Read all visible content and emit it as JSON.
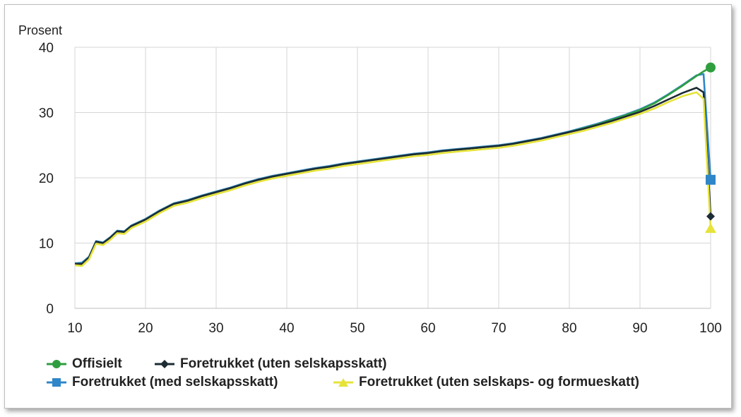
{
  "chart_data": {
    "type": "line",
    "ylabel": "Prosent",
    "xlim": [
      10,
      100
    ],
    "ylim": [
      0,
      40
    ],
    "xticks": [
      10,
      20,
      30,
      40,
      50,
      60,
      70,
      80,
      90,
      100
    ],
    "yticks": [
      0,
      10,
      20,
      30,
      40
    ],
    "grid": true,
    "legend_position": "bottom",
    "series": [
      {
        "name": "Offisielt",
        "color": "#2e9e3e",
        "marker": "circle",
        "x": [
          10,
          11,
          12,
          13,
          14,
          15,
          16,
          17,
          18,
          20,
          22,
          24,
          26,
          28,
          30,
          32,
          34,
          36,
          38,
          40,
          42,
          44,
          46,
          48,
          50,
          52,
          54,
          56,
          58,
          60,
          62,
          64,
          66,
          68,
          70,
          72,
          74,
          76,
          78,
          80,
          82,
          84,
          86,
          88,
          90,
          92,
          94,
          96,
          98,
          99,
          100
        ],
        "y": [
          6.8,
          6.8,
          7.8,
          10.2,
          10.0,
          10.8,
          11.8,
          11.7,
          12.6,
          13.6,
          14.9,
          16.0,
          16.5,
          17.2,
          17.8,
          18.4,
          19.1,
          19.7,
          20.2,
          20.6,
          21.0,
          21.4,
          21.7,
          22.1,
          22.4,
          22.7,
          23.0,
          23.3,
          23.6,
          23.8,
          24.1,
          24.3,
          24.5,
          24.7,
          24.9,
          25.2,
          25.6,
          26.0,
          26.5,
          27.0,
          27.6,
          28.2,
          28.9,
          29.6,
          30.4,
          31.4,
          32.7,
          34.1,
          35.6,
          36.3,
          36.9
        ]
      },
      {
        "name": "Foretrukket (uten selskapsskatt)",
        "color": "#1d2b33",
        "marker": "diamond",
        "x": [
          10,
          11,
          12,
          13,
          14,
          15,
          16,
          17,
          18,
          20,
          22,
          24,
          26,
          28,
          30,
          32,
          34,
          36,
          38,
          40,
          42,
          44,
          46,
          48,
          50,
          52,
          54,
          56,
          58,
          60,
          62,
          64,
          66,
          68,
          70,
          72,
          74,
          76,
          78,
          80,
          82,
          84,
          86,
          88,
          90,
          92,
          94,
          96,
          98,
          99,
          100
        ],
        "y": [
          6.8,
          6.8,
          7.8,
          10.2,
          10.0,
          10.8,
          11.8,
          11.7,
          12.6,
          13.6,
          14.9,
          16.0,
          16.5,
          17.2,
          17.8,
          18.4,
          19.1,
          19.7,
          20.2,
          20.6,
          21.0,
          21.4,
          21.7,
          22.1,
          22.4,
          22.7,
          23.0,
          23.3,
          23.6,
          23.8,
          24.1,
          24.3,
          24.5,
          24.7,
          24.9,
          25.2,
          25.6,
          26.0,
          26.5,
          27.0,
          27.5,
          28.1,
          28.7,
          29.4,
          30.1,
          31.0,
          32.0,
          33.0,
          33.8,
          33.1,
          14.1
        ]
      },
      {
        "name": "Foretrukket (med selskapsskatt)",
        "color": "#2f86c8",
        "marker": "square",
        "x": [
          10,
          11,
          12,
          13,
          14,
          15,
          16,
          17,
          18,
          20,
          22,
          24,
          26,
          28,
          30,
          32,
          34,
          36,
          38,
          40,
          42,
          44,
          46,
          48,
          50,
          52,
          54,
          56,
          58,
          60,
          62,
          64,
          66,
          68,
          70,
          72,
          74,
          76,
          78,
          80,
          82,
          84,
          86,
          88,
          90,
          92,
          94,
          96,
          98,
          99,
          100
        ],
        "y": [
          6.9,
          7.0,
          7.9,
          10.3,
          10.1,
          10.9,
          11.9,
          11.8,
          12.7,
          13.7,
          15.0,
          16.1,
          16.6,
          17.3,
          17.9,
          18.5,
          19.2,
          19.8,
          20.3,
          20.7,
          21.1,
          21.5,
          21.8,
          22.2,
          22.5,
          22.8,
          23.1,
          23.4,
          23.7,
          23.9,
          24.2,
          24.4,
          24.6,
          24.8,
          25.0,
          25.3,
          25.7,
          26.1,
          26.6,
          27.1,
          27.7,
          28.3,
          29.0,
          29.7,
          30.5,
          31.5,
          32.8,
          34.2,
          35.7,
          35.9,
          19.7
        ]
      },
      {
        "name": "Foretrukket (uten selskaps- og formueskatt)",
        "color": "#e6e33a",
        "marker": "triangle",
        "x": [
          10,
          11,
          12,
          13,
          14,
          15,
          16,
          17,
          18,
          20,
          22,
          24,
          26,
          28,
          30,
          32,
          34,
          36,
          38,
          40,
          42,
          44,
          46,
          48,
          50,
          52,
          54,
          56,
          58,
          60,
          62,
          64,
          66,
          68,
          70,
          72,
          74,
          76,
          78,
          80,
          82,
          84,
          86,
          88,
          90,
          92,
          94,
          96,
          98,
          99,
          100
        ],
        "y": [
          6.6,
          6.5,
          7.5,
          9.9,
          9.7,
          10.5,
          11.5,
          11.4,
          12.3,
          13.3,
          14.6,
          15.7,
          16.2,
          16.9,
          17.5,
          18.1,
          18.8,
          19.4,
          19.9,
          20.3,
          20.7,
          21.1,
          21.4,
          21.8,
          22.1,
          22.4,
          22.7,
          23.0,
          23.3,
          23.5,
          23.8,
          24.0,
          24.2,
          24.4,
          24.6,
          24.9,
          25.3,
          25.7,
          26.2,
          26.7,
          27.2,
          27.8,
          28.4,
          29.1,
          29.8,
          30.6,
          31.6,
          32.5,
          33.1,
          32.1,
          12.2
        ]
      }
    ]
  }
}
